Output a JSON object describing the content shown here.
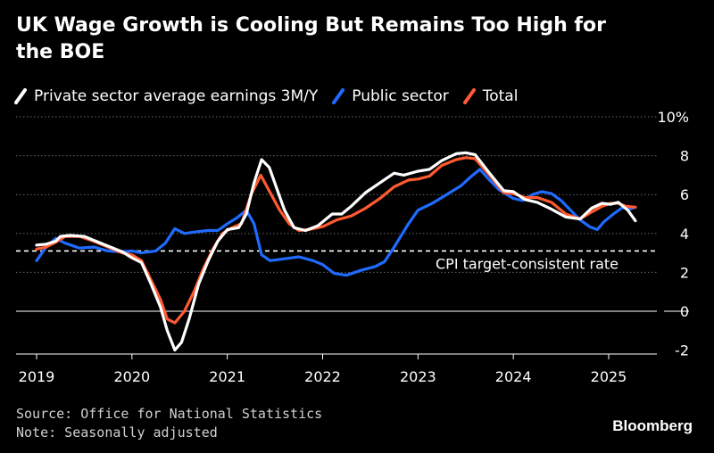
{
  "title": "UK Wage Growth is Cooling But Remains Too High for the BOE",
  "source": "Source: Office for National Statistics",
  "note": "Note: Seasonally adjusted",
  "brand": "Bloomberg",
  "colors": {
    "background": "#000000",
    "private": "#ffffff",
    "public": "#1f6bff",
    "total": "#ff5a30"
  },
  "chart_data": {
    "type": "line",
    "title": "UK Wage Growth is Cooling But Remains Too High for the BOE",
    "xlabel": "",
    "ylabel": "",
    "x_ticks": [
      "2019",
      "2020",
      "2021",
      "2022",
      "2023",
      "2024",
      "2025"
    ],
    "y_ticks": [
      "10%",
      "8",
      "6",
      "4",
      "2",
      "0",
      "-2"
    ],
    "xlim": [
      2018.9,
      2025.5
    ],
    "ylim": [
      -2.2,
      10
    ],
    "grid": true,
    "legend_position": "top",
    "annotation": {
      "text": "CPI target-consistent rate",
      "value": 3.1
    },
    "series": [
      {
        "name": "Private sector average earnings 3M/Y",
        "color": "#ffffff",
        "points": [
          [
            2019.0,
            3.4
          ],
          [
            2019.1,
            3.45
          ],
          [
            2019.2,
            3.6
          ],
          [
            2019.25,
            3.85
          ],
          [
            2019.35,
            3.9
          ],
          [
            2019.5,
            3.85
          ],
          [
            2019.6,
            3.65
          ],
          [
            2019.75,
            3.35
          ],
          [
            2019.9,
            3.05
          ],
          [
            2020.0,
            2.75
          ],
          [
            2020.1,
            2.5
          ],
          [
            2020.2,
            1.4
          ],
          [
            2020.3,
            0.2
          ],
          [
            2020.37,
            -1.0
          ],
          [
            2020.45,
            -2.0
          ],
          [
            2020.52,
            -1.6
          ],
          [
            2020.6,
            -0.4
          ],
          [
            2020.7,
            1.4
          ],
          [
            2020.8,
            2.6
          ],
          [
            2020.9,
            3.6
          ],
          [
            2021.0,
            4.2
          ],
          [
            2021.12,
            4.3
          ],
          [
            2021.2,
            5.0
          ],
          [
            2021.28,
            6.6
          ],
          [
            2021.36,
            7.8
          ],
          [
            2021.44,
            7.4
          ],
          [
            2021.52,
            6.3
          ],
          [
            2021.6,
            5.2
          ],
          [
            2021.7,
            4.3
          ],
          [
            2021.82,
            4.15
          ],
          [
            2021.95,
            4.4
          ],
          [
            2022.1,
            5.0
          ],
          [
            2022.2,
            5.0
          ],
          [
            2022.3,
            5.4
          ],
          [
            2022.45,
            6.1
          ],
          [
            2022.6,
            6.6
          ],
          [
            2022.75,
            7.1
          ],
          [
            2022.85,
            7.0
          ],
          [
            2023.0,
            7.2
          ],
          [
            2023.12,
            7.3
          ],
          [
            2023.25,
            7.75
          ],
          [
            2023.4,
            8.1
          ],
          [
            2023.5,
            8.15
          ],
          [
            2023.6,
            8.05
          ],
          [
            2023.75,
            7.1
          ],
          [
            2023.9,
            6.2
          ],
          [
            2024.0,
            6.15
          ],
          [
            2024.12,
            5.75
          ],
          [
            2024.25,
            5.6
          ],
          [
            2024.4,
            5.25
          ],
          [
            2024.55,
            4.85
          ],
          [
            2024.7,
            4.75
          ],
          [
            2024.82,
            5.3
          ],
          [
            2024.93,
            5.55
          ],
          [
            2025.02,
            5.5
          ],
          [
            2025.1,
            5.6
          ],
          [
            2025.2,
            5.2
          ],
          [
            2025.28,
            4.65
          ]
        ]
      },
      {
        "name": "Public sector",
        "color": "#1f6bff",
        "points": [
          [
            2019.0,
            2.6
          ],
          [
            2019.1,
            3.3
          ],
          [
            2019.2,
            3.75
          ],
          [
            2019.3,
            3.5
          ],
          [
            2019.45,
            3.25
          ],
          [
            2019.6,
            3.3
          ],
          [
            2019.75,
            3.1
          ],
          [
            2019.9,
            3.05
          ],
          [
            2020.0,
            3.1
          ],
          [
            2020.1,
            3.0
          ],
          [
            2020.25,
            3.1
          ],
          [
            2020.35,
            3.5
          ],
          [
            2020.45,
            4.25
          ],
          [
            2020.55,
            4.0
          ],
          [
            2020.7,
            4.1
          ],
          [
            2020.8,
            4.15
          ],
          [
            2020.9,
            4.15
          ],
          [
            2021.0,
            4.5
          ],
          [
            2021.1,
            4.8
          ],
          [
            2021.2,
            5.2
          ],
          [
            2021.28,
            4.5
          ],
          [
            2021.36,
            2.9
          ],
          [
            2021.45,
            2.6
          ],
          [
            2021.6,
            2.7
          ],
          [
            2021.75,
            2.8
          ],
          [
            2021.9,
            2.6
          ],
          [
            2022.0,
            2.4
          ],
          [
            2022.12,
            1.95
          ],
          [
            2022.25,
            1.85
          ],
          [
            2022.4,
            2.1
          ],
          [
            2022.55,
            2.3
          ],
          [
            2022.65,
            2.55
          ],
          [
            2022.75,
            3.3
          ],
          [
            2022.9,
            4.5
          ],
          [
            2023.0,
            5.2
          ],
          [
            2023.15,
            5.55
          ],
          [
            2023.3,
            6.0
          ],
          [
            2023.45,
            6.45
          ],
          [
            2023.55,
            6.9
          ],
          [
            2023.65,
            7.3
          ],
          [
            2023.75,
            6.75
          ],
          [
            2023.85,
            6.25
          ],
          [
            2024.0,
            5.8
          ],
          [
            2024.1,
            5.7
          ],
          [
            2024.2,
            6.0
          ],
          [
            2024.3,
            6.15
          ],
          [
            2024.4,
            6.05
          ],
          [
            2024.5,
            5.7
          ],
          [
            2024.6,
            5.2
          ],
          [
            2024.7,
            4.7
          ],
          [
            2024.8,
            4.35
          ],
          [
            2024.88,
            4.2
          ],
          [
            2024.95,
            4.6
          ],
          [
            2025.05,
            5.0
          ],
          [
            2025.15,
            5.35
          ],
          [
            2025.22,
            5.25
          ],
          [
            2025.28,
            5.35
          ]
        ]
      },
      {
        "name": "Total",
        "color": "#ff5a30",
        "points": [
          [
            2019.0,
            3.2
          ],
          [
            2019.1,
            3.3
          ],
          [
            2019.2,
            3.55
          ],
          [
            2019.3,
            3.85
          ],
          [
            2019.45,
            3.85
          ],
          [
            2019.6,
            3.6
          ],
          [
            2019.75,
            3.3
          ],
          [
            2019.9,
            3.0
          ],
          [
            2020.0,
            2.9
          ],
          [
            2020.1,
            2.6
          ],
          [
            2020.2,
            1.6
          ],
          [
            2020.3,
            0.6
          ],
          [
            2020.37,
            -0.4
          ],
          [
            2020.45,
            -0.6
          ],
          [
            2020.55,
            0.0
          ],
          [
            2020.65,
            1.0
          ],
          [
            2020.75,
            2.2
          ],
          [
            2020.85,
            3.2
          ],
          [
            2020.95,
            4.0
          ],
          [
            2021.05,
            4.3
          ],
          [
            2021.15,
            4.5
          ],
          [
            2021.25,
            6.0
          ],
          [
            2021.35,
            7.0
          ],
          [
            2021.45,
            6.1
          ],
          [
            2021.55,
            5.2
          ],
          [
            2021.65,
            4.5
          ],
          [
            2021.75,
            4.15
          ],
          [
            2021.85,
            4.2
          ],
          [
            2022.0,
            4.35
          ],
          [
            2022.15,
            4.7
          ],
          [
            2022.3,
            4.9
          ],
          [
            2022.45,
            5.3
          ],
          [
            2022.6,
            5.8
          ],
          [
            2022.75,
            6.4
          ],
          [
            2022.9,
            6.75
          ],
          [
            2023.0,
            6.8
          ],
          [
            2023.12,
            6.95
          ],
          [
            2023.25,
            7.5
          ],
          [
            2023.4,
            7.8
          ],
          [
            2023.5,
            7.9
          ],
          [
            2023.6,
            7.85
          ],
          [
            2023.75,
            7.0
          ],
          [
            2023.9,
            6.1
          ],
          [
            2024.0,
            6.05
          ],
          [
            2024.12,
            5.85
          ],
          [
            2024.25,
            5.85
          ],
          [
            2024.4,
            5.6
          ],
          [
            2024.55,
            5.0
          ],
          [
            2024.7,
            4.75
          ],
          [
            2024.82,
            5.1
          ],
          [
            2024.93,
            5.4
          ],
          [
            2025.02,
            5.55
          ],
          [
            2025.1,
            5.55
          ],
          [
            2025.18,
            5.4
          ],
          [
            2025.28,
            5.35
          ]
        ]
      }
    ]
  }
}
